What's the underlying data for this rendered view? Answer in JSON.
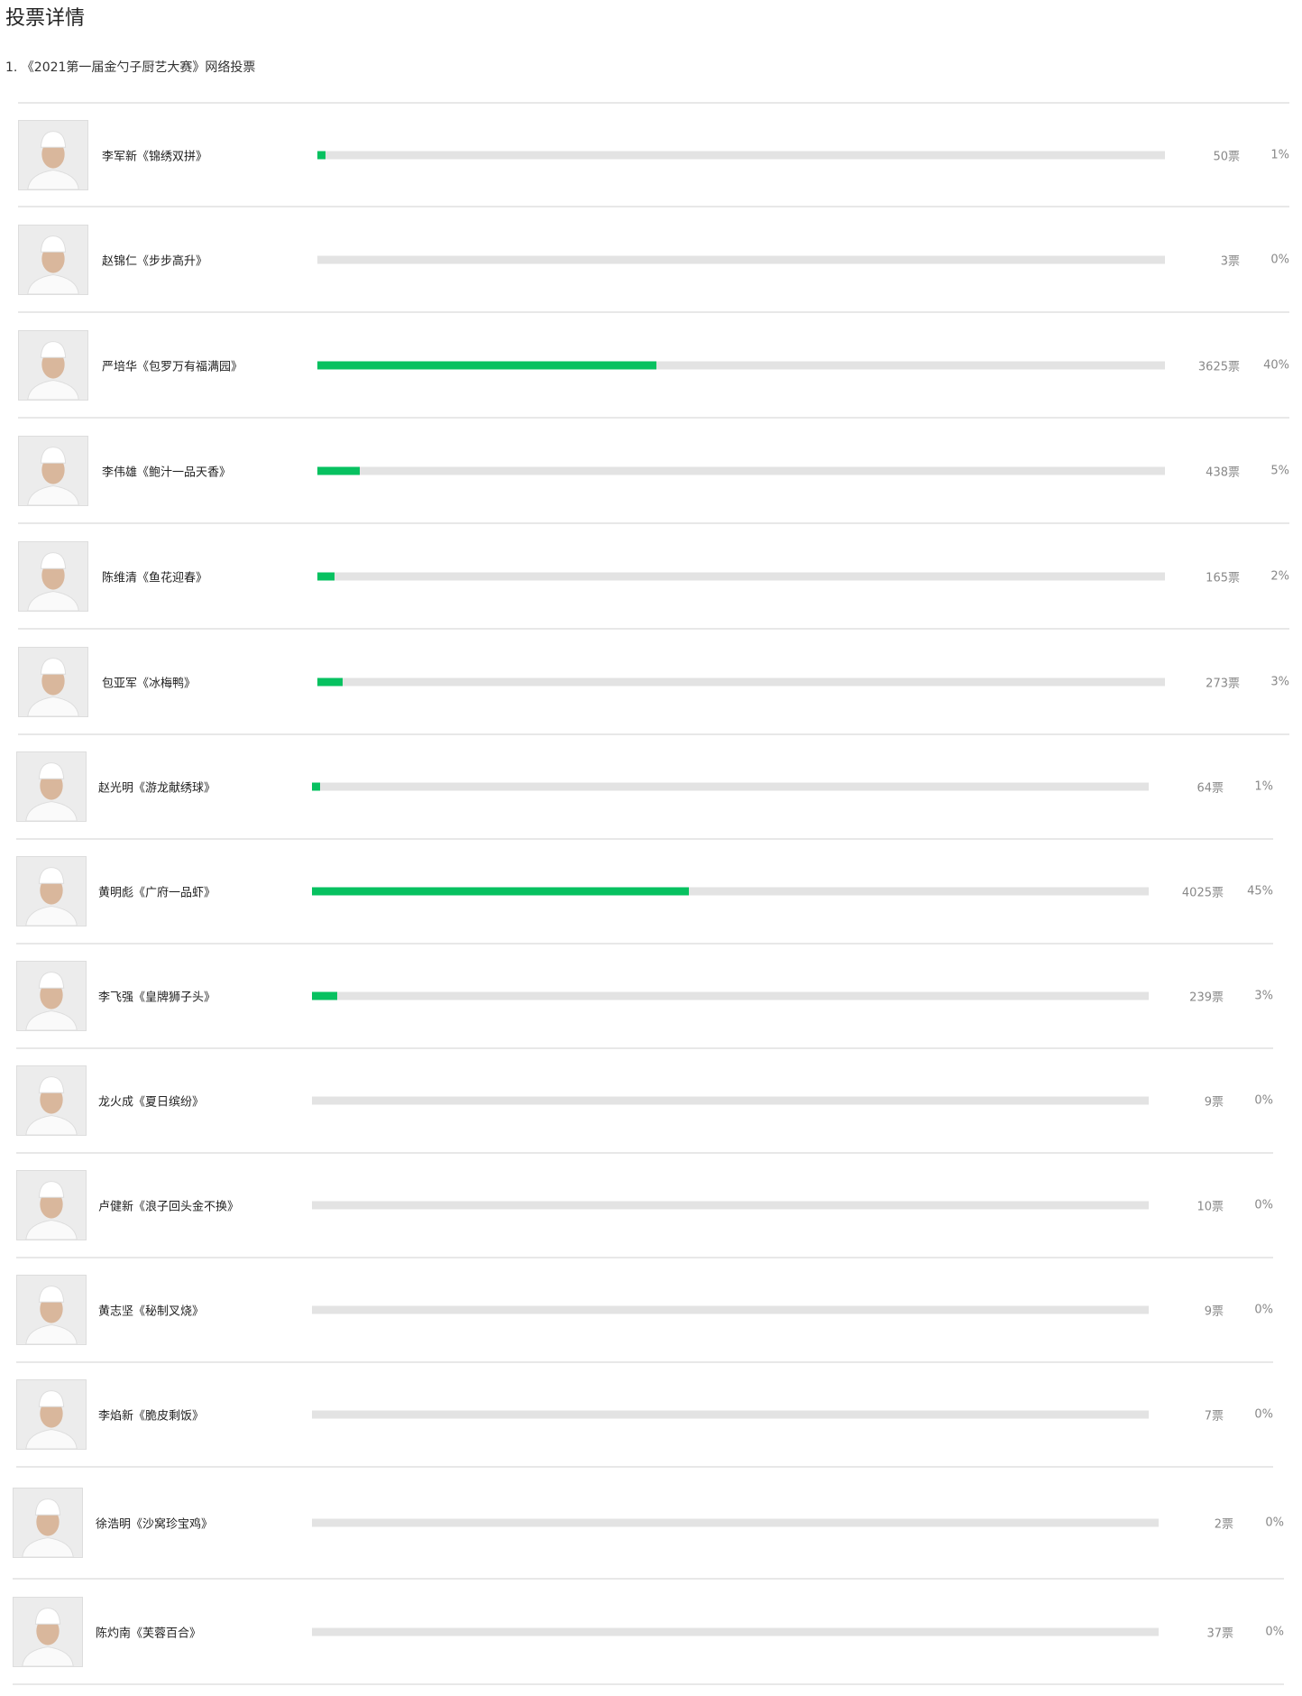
{
  "page": {
    "title": "投票详情"
  },
  "poll": {
    "subtitle": "1. 《2021第一届金勺子厨艺大赛》网络投票",
    "accent_color": "#07c160",
    "track_color": "#e3e3e3",
    "candidates": [
      {
        "label": "李军新《锦绣双拼》",
        "votes": "50票",
        "percent": "1%",
        "progress": 1
      },
      {
        "label": "赵锦仁《步步高升》",
        "votes": "3票",
        "percent": "0%",
        "progress": 0
      },
      {
        "label": "严培华《包罗万有福满园》",
        "votes": "3625票",
        "percent": "40%",
        "progress": 40
      },
      {
        "label": "李伟雄《鲍汁一品天香》",
        "votes": "438票",
        "percent": "5%",
        "progress": 5
      },
      {
        "label": "陈维清《鱼花迎春》",
        "votes": "165票",
        "percent": "2%",
        "progress": 2
      },
      {
        "label": "包亚军《冰梅鸭》",
        "votes": "273票",
        "percent": "3%",
        "progress": 3
      },
      {
        "label": "赵光明《游龙献绣球》",
        "votes": "64票",
        "percent": "1%",
        "progress": 1
      },
      {
        "label": "黄明彪《广府一品虾》",
        "votes": "4025票",
        "percent": "45%",
        "progress": 45
      },
      {
        "label": "李飞强《皇牌狮子头》",
        "votes": "239票",
        "percent": "3%",
        "progress": 3
      },
      {
        "label": "龙火成《夏日缤纷》",
        "votes": "9票",
        "percent": "0%",
        "progress": 0
      },
      {
        "label": "卢健新《浪子回头金不换》",
        "votes": "10票",
        "percent": "0%",
        "progress": 0
      },
      {
        "label": "黄志坚《秘制叉烧》",
        "votes": "9票",
        "percent": "0%",
        "progress": 0
      },
      {
        "label": "李焰新《脆皮剩饭》",
        "votes": "7票",
        "percent": "0%",
        "progress": 0
      },
      {
        "label": "徐浩明《沙窝珍宝鸡》",
        "votes": "2票",
        "percent": "0%",
        "progress": 0
      },
      {
        "label": "陈灼南《芙蓉百合》",
        "votes": "37票",
        "percent": "0%",
        "progress": 0
      }
    ]
  }
}
